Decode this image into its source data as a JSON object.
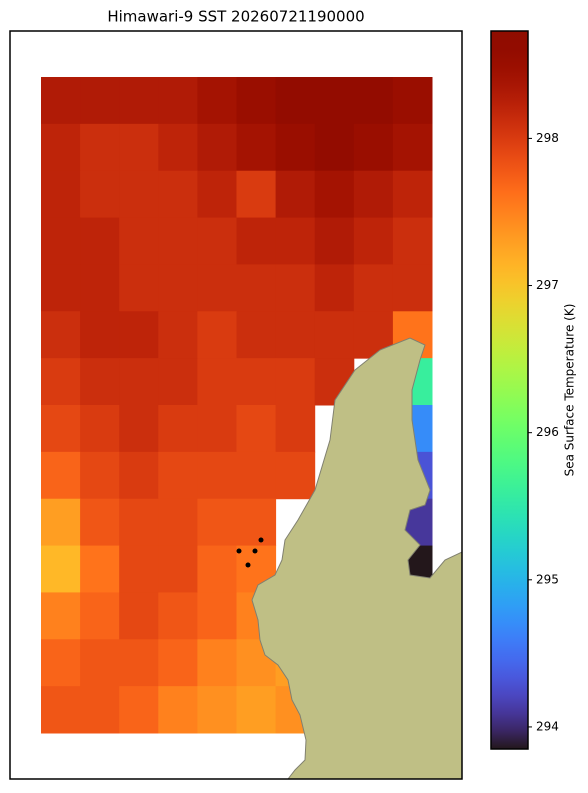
{
  "chart_data": {
    "type": "heatmap",
    "title": "Himawari-9 SST 20260721190000",
    "colorbar_label": "Sea Surface Temperature (K)",
    "colormap": "turbo",
    "zlim": [
      293.85,
      298.73
    ],
    "zticks": [
      294,
      295,
      296,
      297,
      298
    ],
    "values": [
      [
        298.3,
        298.3,
        298.3,
        298.3,
        298.4,
        298.5,
        298.6,
        298.6,
        298.6,
        298.5
      ],
      [
        298.2,
        298.1,
        298.1,
        298.2,
        298.3,
        298.4,
        298.5,
        298.6,
        298.5,
        298.4
      ],
      [
        298.2,
        298.1,
        298.1,
        298.1,
        298.2,
        298.0,
        298.3,
        298.4,
        298.3,
        298.2
      ],
      [
        298.2,
        298.2,
        298.1,
        298.1,
        298.1,
        298.2,
        298.2,
        298.3,
        298.2,
        298.1
      ],
      [
        298.2,
        298.2,
        298.1,
        298.1,
        298.1,
        298.1,
        298.1,
        298.2,
        298.1,
        298.1
      ],
      [
        298.1,
        298.2,
        298.2,
        298.1,
        298.0,
        298.1,
        298.1,
        298.1,
        298.1,
        297.6
      ],
      [
        298.0,
        298.1,
        298.1,
        298.1,
        298.0,
        298.0,
        298.0,
        298.1,
        null,
        295.6
      ],
      [
        297.9,
        298.0,
        298.1,
        298.0,
        298.0,
        297.9,
        298.0,
        null,
        null,
        294.7
      ],
      [
        297.7,
        297.9,
        298.0,
        297.9,
        297.9,
        297.9,
        297.9,
        null,
        null,
        294.3
      ],
      [
        297.3,
        297.8,
        297.9,
        297.9,
        297.8,
        297.8,
        null,
        null,
        null,
        294.1
      ],
      [
        297.1,
        297.6,
        297.9,
        297.9,
        297.7,
        297.6,
        null,
        null,
        null,
        293.7
      ],
      [
        297.5,
        297.7,
        297.9,
        297.8,
        297.7,
        297.5,
        null,
        null,
        null,
        null
      ],
      [
        297.7,
        297.8,
        297.8,
        297.7,
        297.5,
        297.4,
        297.3,
        null,
        null,
        null
      ],
      [
        297.8,
        297.8,
        297.7,
        297.5,
        297.4,
        297.3,
        297.4,
        null,
        null,
        null
      ]
    ]
  }
}
